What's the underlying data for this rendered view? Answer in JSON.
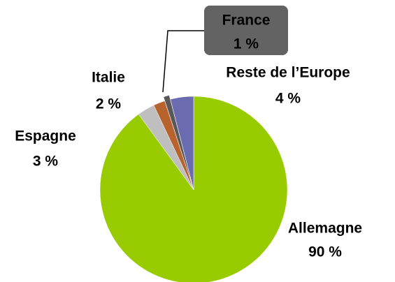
{
  "chart_data": {
    "type": "pie",
    "categories": [
      "Allemagne",
      "Espagne",
      "Italie",
      "France",
      "Reste de l’Europe"
    ],
    "values": [
      90,
      3,
      2,
      1,
      4
    ],
    "value_labels": [
      "90 %",
      "3 %",
      "2 %",
      "1 %",
      "4 %"
    ],
    "colors": [
      "#99cc00",
      "#bfbfbf",
      "#b8622d",
      "#595959",
      "#6b6baf"
    ]
  }
}
